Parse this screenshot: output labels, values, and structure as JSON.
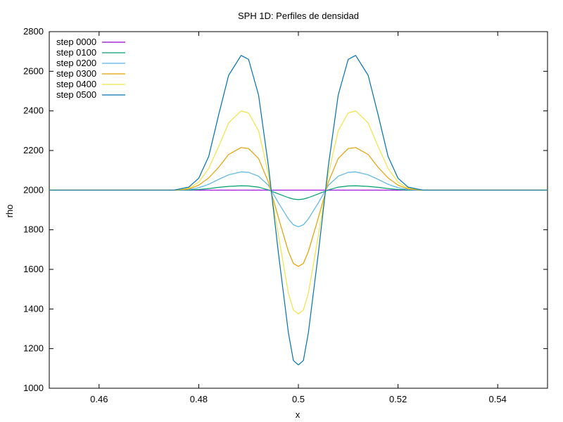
{
  "chart_data": {
    "type": "line",
    "title": "SPH 1D: Perfiles de densidad",
    "xlabel": "x",
    "ylabel": "rho",
    "xlim": [
      0.45,
      0.55
    ],
    "ylim": [
      1000,
      2800
    ],
    "xticks": [
      0.46,
      0.48,
      0.5,
      0.52,
      0.54
    ],
    "xtick_labels": [
      "0.46",
      "0.48",
      "0.5",
      "0.52",
      "0.54"
    ],
    "yticks": [
      1000,
      1200,
      1400,
      1600,
      1800,
      2000,
      2200,
      2400,
      2600,
      2800
    ],
    "ytick_labels": [
      "1000",
      "1200",
      "1400",
      "1600",
      "1800",
      "2000",
      "2200",
      "2400",
      "2600",
      "2800"
    ],
    "grid": false,
    "legend_position": "top-left",
    "x": [
      0.45,
      0.46,
      0.47,
      0.475,
      0.478,
      0.48,
      0.482,
      0.484,
      0.486,
      0.4885,
      0.49,
      0.492,
      0.494,
      0.496,
      0.498,
      0.499,
      0.5,
      0.501,
      0.502,
      0.504,
      0.506,
      0.508,
      0.51,
      0.5115,
      0.514,
      0.516,
      0.518,
      0.52,
      0.522,
      0.525,
      0.53,
      0.54,
      0.55
    ],
    "series": [
      {
        "name": "step 0000",
        "color": "#9400d3",
        "values": [
          2000,
          2000,
          2000,
          2000,
          2000,
          2000,
          2000,
          2000,
          2000,
          2000,
          2000,
          2000,
          2000,
          2000,
          2000,
          2000,
          2000,
          2000,
          2000,
          2000,
          2000,
          2000,
          2000,
          2000,
          2000,
          2000,
          2000,
          2000,
          2000,
          2000,
          2000,
          2000,
          2000
        ]
      },
      {
        "name": "step 0100",
        "color": "#009e73",
        "values": [
          2000,
          2000,
          2000,
          2000,
          2001,
          2003,
          2008,
          2014,
          2019,
          2022,
          2021,
          2015,
          2001,
          1981,
          1962,
          1955,
          1952,
          1955,
          1962,
          1981,
          2001,
          2015,
          2021,
          2022,
          2019,
          2014,
          2008,
          2003,
          2001,
          2000,
          2000,
          2000,
          2000
        ]
      },
      {
        "name": "step 0200",
        "color": "#56b4e9",
        "values": [
          2000,
          2000,
          2000,
          2000,
          2003,
          2012,
          2030,
          2054,
          2077,
          2092,
          2090,
          2070,
          2024,
          1935,
          1855,
          1825,
          1815,
          1825,
          1855,
          1935,
          2024,
          2070,
          2090,
          2092,
          2077,
          2054,
          2030,
          2012,
          2003,
          2000,
          2000,
          2000,
          2000
        ]
      },
      {
        "name": "step 0300",
        "color": "#e69f00",
        "values": [
          2000,
          2000,
          2000,
          2000,
          2006,
          2025,
          2062,
          2115,
          2180,
          2215,
          2210,
          2160,
          2040,
          1860,
          1690,
          1630,
          1615,
          1630,
          1690,
          1860,
          2040,
          2160,
          2210,
          2215,
          2180,
          2115,
          2062,
          2025,
          2006,
          2000,
          2000,
          2000,
          2000
        ]
      },
      {
        "name": "step 0400",
        "color": "#f0e442",
        "values": [
          2000,
          2000,
          2000,
          2000,
          2010,
          2040,
          2110,
          2220,
          2340,
          2400,
          2390,
          2300,
          2080,
          1770,
          1480,
          1395,
          1375,
          1395,
          1480,
          1770,
          2080,
          2300,
          2390,
          2400,
          2340,
          2220,
          2110,
          2040,
          2010,
          2000,
          2000,
          2000,
          2000
        ]
      },
      {
        "name": "step 0500",
        "color": "#0072b2",
        "values": [
          2000,
          2000,
          2000,
          2000,
          2015,
          2060,
          2170,
          2380,
          2580,
          2680,
          2660,
          2480,
          2120,
          1680,
          1280,
          1140,
          1118,
          1140,
          1280,
          1680,
          2120,
          2480,
          2660,
          2680,
          2580,
          2380,
          2170,
          2060,
          2015,
          2000,
          2000,
          2000,
          2000
        ]
      }
    ]
  }
}
